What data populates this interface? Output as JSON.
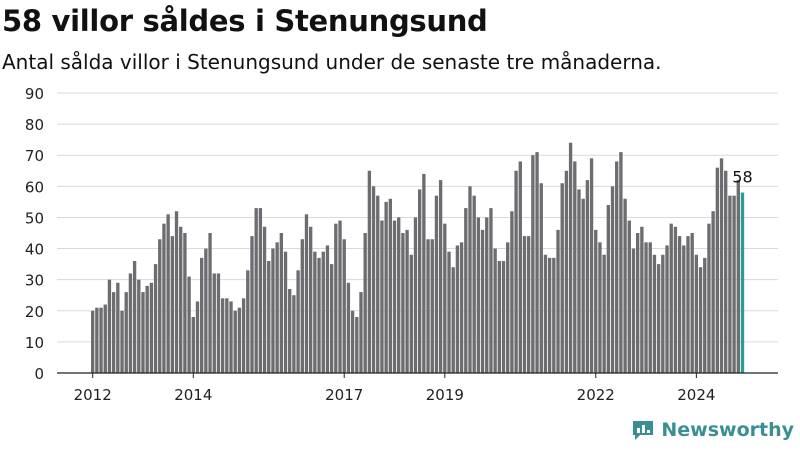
{
  "title": "58 villor såldes i Stenungsund",
  "subtitle": "Antal sålda villor i Stenungsund under de senaste tre månaderna.",
  "brand": {
    "name": "Newsworthy",
    "icon": "newsworthy-logo-icon",
    "color": "#3a8f92"
  },
  "chart_data": {
    "type": "bar",
    "x_start": "2012-01",
    "x_end": "2024-09",
    "x_ticks": [
      {
        "label": "2012",
        "date": "2012-01"
      },
      {
        "label": "2014",
        "date": "2014-01"
      },
      {
        "label": "2017",
        "date": "2017-01"
      },
      {
        "label": "2019",
        "date": "2019-01"
      },
      {
        "label": "2022",
        "date": "2022-01"
      },
      {
        "label": "2024",
        "date": "2024-01"
      }
    ],
    "y_ticks": [
      "0",
      "10",
      "20",
      "30",
      "40",
      "50",
      "60",
      "70",
      "80",
      "90"
    ],
    "ylim": [
      0,
      90
    ],
    "grid": true,
    "values": [
      20,
      21,
      21,
      22,
      30,
      26,
      29,
      20,
      26,
      32,
      36,
      30,
      26,
      28,
      29,
      35,
      43,
      48,
      51,
      44,
      52,
      47,
      45,
      31,
      18,
      23,
      37,
      40,
      45,
      32,
      32,
      24,
      24,
      23,
      20,
      21,
      24,
      33,
      44,
      53,
      53,
      47,
      36,
      40,
      42,
      45,
      39,
      27,
      25,
      33,
      43,
      51,
      47,
      39,
      37,
      39,
      41,
      35,
      48,
      49,
      43,
      29,
      20,
      18,
      26,
      45,
      65,
      60,
      57,
      49,
      55,
      56,
      49,
      50,
      45,
      46,
      38,
      50,
      59,
      64,
      43,
      43,
      57,
      62,
      48,
      39,
      34,
      41,
      42,
      53,
      60,
      57,
      50,
      46,
      50,
      53,
      40,
      36,
      36,
      42,
      52,
      65,
      68,
      44,
      44,
      70,
      71,
      61,
      38,
      37,
      37,
      46,
      61,
      65,
      74,
      68,
      59,
      56,
      62,
      69,
      46,
      42,
      38,
      54,
      60,
      68,
      71,
      56,
      49,
      40,
      45,
      47,
      42,
      42,
      38,
      35,
      38,
      41,
      48,
      47,
      44,
      41,
      44,
      45,
      38,
      34,
      37,
      48,
      52,
      66,
      69,
      65,
      57,
      57,
      62,
      58
    ],
    "bar_color": "#6d6d71",
    "highlight": {
      "label": "58",
      "color": "#2b9c96"
    }
  }
}
